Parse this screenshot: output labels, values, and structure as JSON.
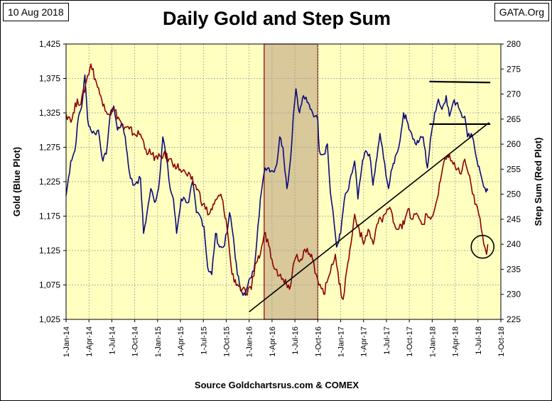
{
  "header": {
    "date": "10 Aug 2018",
    "source_tag": "GATA.Org",
    "title": "Daily Gold and Step Sum",
    "footer": "Source Goldchartsrus.com & COMEX"
  },
  "colors": {
    "plot_bg": "#FFFFC0",
    "gold_line": "#0A0A7A",
    "step_line": "#8B0000",
    "highlight": "#D8C89A",
    "highlight_border": "#8B0000",
    "grid": "#999999"
  },
  "chart_data": {
    "type": "line",
    "title": "Daily Gold and Step Sum",
    "xlabel": "",
    "ylabel_left": "Gold  (Blue Plot)",
    "ylabel_right": "Step Sum  (Red Plot)",
    "x_range": [
      "2014-01-01",
      "2018-10-01"
    ],
    "ylim_left": [
      1025,
      1425
    ],
    "ylim_right": [
      225,
      280
    ],
    "grid": true,
    "x_tick_labels": [
      "1-Jan-14",
      "1-Apr-14",
      "1-Jul-14",
      "1-Oct-14",
      "1-Jan-15",
      "1-Apr-15",
      "1-Jul-15",
      "1-Oct-15",
      "1-Jan-16",
      "1-Apr-16",
      "1-Jul-16",
      "1-Oct-16",
      "1-Jan-17",
      "1-Apr-17",
      "1-Jul-17",
      "1-Oct-17",
      "1-Jan-18",
      "1-Apr-18",
      "1-Jul-18",
      "1-Oct-18"
    ],
    "y_left_ticks": [
      "1,025",
      "1,075",
      "1,125",
      "1,175",
      "1,225",
      "1,275",
      "1,325",
      "1,375",
      "1,425"
    ],
    "y_right_ticks": [
      "225",
      "230",
      "235",
      "240",
      "245",
      "250",
      "255",
      "260",
      "265",
      "270",
      "275",
      "280"
    ],
    "highlight_range": [
      "2016-03-01",
      "2016-10-01"
    ],
    "series": [
      {
        "name": "Gold",
        "axis": "left",
        "x": [
          "2014-01-01",
          "2014-01-20",
          "2014-02-05",
          "2014-02-20",
          "2014-03-05",
          "2014-03-17",
          "2014-03-28",
          "2014-04-10",
          "2014-04-25",
          "2014-05-10",
          "2014-05-28",
          "2014-06-10",
          "2014-06-25",
          "2014-07-10",
          "2014-07-25",
          "2014-08-10",
          "2014-08-25",
          "2014-09-10",
          "2014-09-25",
          "2014-10-10",
          "2014-10-25",
          "2014-11-06",
          "2014-11-20",
          "2014-12-05",
          "2014-12-20",
          "2015-01-05",
          "2015-01-22",
          "2015-02-05",
          "2015-02-20",
          "2015-03-05",
          "2015-03-18",
          "2015-04-05",
          "2015-04-20",
          "2015-05-05",
          "2015-05-20",
          "2015-06-05",
          "2015-06-20",
          "2015-07-05",
          "2015-07-20",
          "2015-08-05",
          "2015-08-20",
          "2015-09-05",
          "2015-09-20",
          "2015-10-05",
          "2015-10-15",
          "2015-10-30",
          "2015-11-15",
          "2015-12-03",
          "2015-12-17",
          "2016-01-05",
          "2016-01-20",
          "2016-02-05",
          "2016-02-15",
          "2016-03-05",
          "2016-03-20",
          "2016-04-05",
          "2016-04-20",
          "2016-05-02",
          "2016-05-15",
          "2016-05-31",
          "2016-06-15",
          "2016-06-25",
          "2016-07-06",
          "2016-07-20",
          "2016-08-05",
          "2016-08-20",
          "2016-09-05",
          "2016-09-20",
          "2016-10-01",
          "2016-10-07",
          "2016-10-25",
          "2016-11-08",
          "2016-11-20",
          "2016-12-05",
          "2016-12-15",
          "2016-12-31",
          "2017-01-15",
          "2017-02-01",
          "2017-02-25",
          "2017-03-10",
          "2017-03-25",
          "2017-04-10",
          "2017-04-25",
          "2017-05-09",
          "2017-05-25",
          "2017-06-06",
          "2017-06-20",
          "2017-07-10",
          "2017-07-25",
          "2017-08-10",
          "2017-08-25",
          "2017-09-08",
          "2017-09-25",
          "2017-10-10",
          "2017-10-25",
          "2017-11-10",
          "2017-11-25",
          "2017-12-12",
          "2017-12-28",
          "2018-01-10",
          "2018-01-25",
          "2018-02-08",
          "2018-02-25",
          "2018-03-10",
          "2018-03-25",
          "2018-04-11",
          "2018-04-25",
          "2018-05-10",
          "2018-05-21",
          "2018-06-05",
          "2018-06-14",
          "2018-06-28",
          "2018-07-10",
          "2018-07-20",
          "2018-08-03",
          "2018-08-10"
        ],
        "y": [
          1205,
          1255,
          1270,
          1320,
          1335,
          1380,
          1315,
          1300,
          1295,
          1300,
          1255,
          1265,
          1320,
          1335,
          1300,
          1310,
          1290,
          1240,
          1220,
          1225,
          1230,
          1150,
          1180,
          1215,
          1195,
          1215,
          1290,
          1260,
          1215,
          1200,
          1150,
          1200,
          1200,
          1195,
          1225,
          1180,
          1175,
          1160,
          1100,
          1090,
          1150,
          1130,
          1130,
          1150,
          1180,
          1145,
          1090,
          1065,
          1060,
          1085,
          1095,
          1160,
          1200,
          1245,
          1245,
          1240,
          1250,
          1290,
          1275,
          1215,
          1260,
          1320,
          1360,
          1325,
          1350,
          1340,
          1330,
          1320,
          1315,
          1270,
          1265,
          1280,
          1210,
          1165,
          1130,
          1150,
          1200,
          1215,
          1255,
          1200,
          1245,
          1270,
          1265,
          1220,
          1260,
          1295,
          1260,
          1215,
          1245,
          1265,
          1285,
          1325,
          1310,
          1295,
          1280,
          1285,
          1290,
          1245,
          1295,
          1325,
          1345,
          1330,
          1350,
          1320,
          1340,
          1340,
          1325,
          1320,
          1290,
          1295,
          1285,
          1255,
          1240,
          1225,
          1210,
          1212
        ]
      },
      {
        "name": "Step Sum",
        "axis": "right",
        "x": [
          "2014-01-01",
          "2014-01-25",
          "2014-02-15",
          "2014-03-01",
          "2014-03-20",
          "2014-04-10",
          "2014-04-28",
          "2014-05-15",
          "2014-06-01",
          "2014-06-20",
          "2014-07-10",
          "2014-08-01",
          "2014-08-20",
          "2014-09-10",
          "2014-10-01",
          "2014-10-25",
          "2014-11-15",
          "2014-12-05",
          "2015-01-01",
          "2015-01-25",
          "2015-02-15",
          "2015-03-10",
          "2015-04-01",
          "2015-04-25",
          "2015-05-15",
          "2015-06-10",
          "2015-07-01",
          "2015-07-25",
          "2015-08-15",
          "2015-09-10",
          "2015-10-01",
          "2015-10-25",
          "2015-11-15",
          "2015-12-05",
          "2015-12-20",
          "2016-01-10",
          "2016-01-25",
          "2016-02-15",
          "2016-03-01",
          "2016-03-15",
          "2016-04-01",
          "2016-04-20",
          "2016-05-10",
          "2016-05-25",
          "2016-06-10",
          "2016-06-25",
          "2016-07-10",
          "2016-07-25",
          "2016-08-10",
          "2016-08-25",
          "2016-09-10",
          "2016-09-25",
          "2016-10-10",
          "2016-10-25",
          "2016-11-10",
          "2016-11-25",
          "2016-12-10",
          "2016-12-25",
          "2017-01-10",
          "2017-01-25",
          "2017-02-10",
          "2017-02-25",
          "2017-03-15",
          "2017-04-01",
          "2017-04-20",
          "2017-05-10",
          "2017-05-25",
          "2017-06-10",
          "2017-06-25",
          "2017-07-10",
          "2017-07-25",
          "2017-08-10",
          "2017-08-25",
          "2017-09-10",
          "2017-09-25",
          "2017-10-10",
          "2017-10-25",
          "2017-11-10",
          "2017-11-25",
          "2017-12-10",
          "2017-12-25",
          "2018-01-10",
          "2018-01-25",
          "2018-02-10",
          "2018-02-25",
          "2018-03-10",
          "2018-03-25",
          "2018-04-10",
          "2018-04-25",
          "2018-05-10",
          "2018-05-25",
          "2018-06-10",
          "2018-06-25",
          "2018-07-05",
          "2018-07-15",
          "2018-07-25",
          "2018-08-05",
          "2018-08-10"
        ],
        "y": [
          266,
          265,
          269,
          268,
          272,
          276,
          273,
          270,
          268,
          266,
          267,
          265,
          263,
          263,
          262,
          262,
          259,
          258,
          257,
          258,
          257,
          256,
          255,
          254,
          253,
          251,
          248,
          246,
          248,
          250,
          245,
          234,
          232,
          231,
          230,
          231,
          236,
          238,
          242,
          241,
          237,
          235,
          233,
          233,
          231,
          236,
          238,
          237,
          239,
          238,
          237,
          234,
          232,
          230,
          233,
          236,
          238,
          232,
          229,
          235,
          240,
          246,
          243,
          240,
          243,
          240,
          244,
          245,
          246,
          247,
          246,
          243,
          244,
          244,
          247,
          245,
          246,
          245,
          244,
          246,
          245,
          247,
          250,
          255,
          257,
          258,
          256,
          255,
          254,
          257,
          254,
          250,
          248,
          246,
          243,
          240,
          238,
          240
        ]
      }
    ],
    "annotations": [
      {
        "type": "line",
        "from": [
          "2016-01-01",
          226.5
        ],
        "to": [
          "2018-08-15",
          264.3
        ],
        "axis": "right"
      },
      {
        "type": "line",
        "from": [
          "2017-12-20",
          264
        ],
        "to": [
          "2018-08-20",
          264
        ],
        "axis": "right"
      },
      {
        "type": "line",
        "from": [
          "2017-12-20",
          272.5
        ],
        "to": [
          "2018-08-20",
          272.3
        ],
        "axis": "right"
      },
      {
        "type": "circle",
        "center": [
          "2018-07-20",
          239.5
        ],
        "axis": "right"
      }
    ]
  }
}
